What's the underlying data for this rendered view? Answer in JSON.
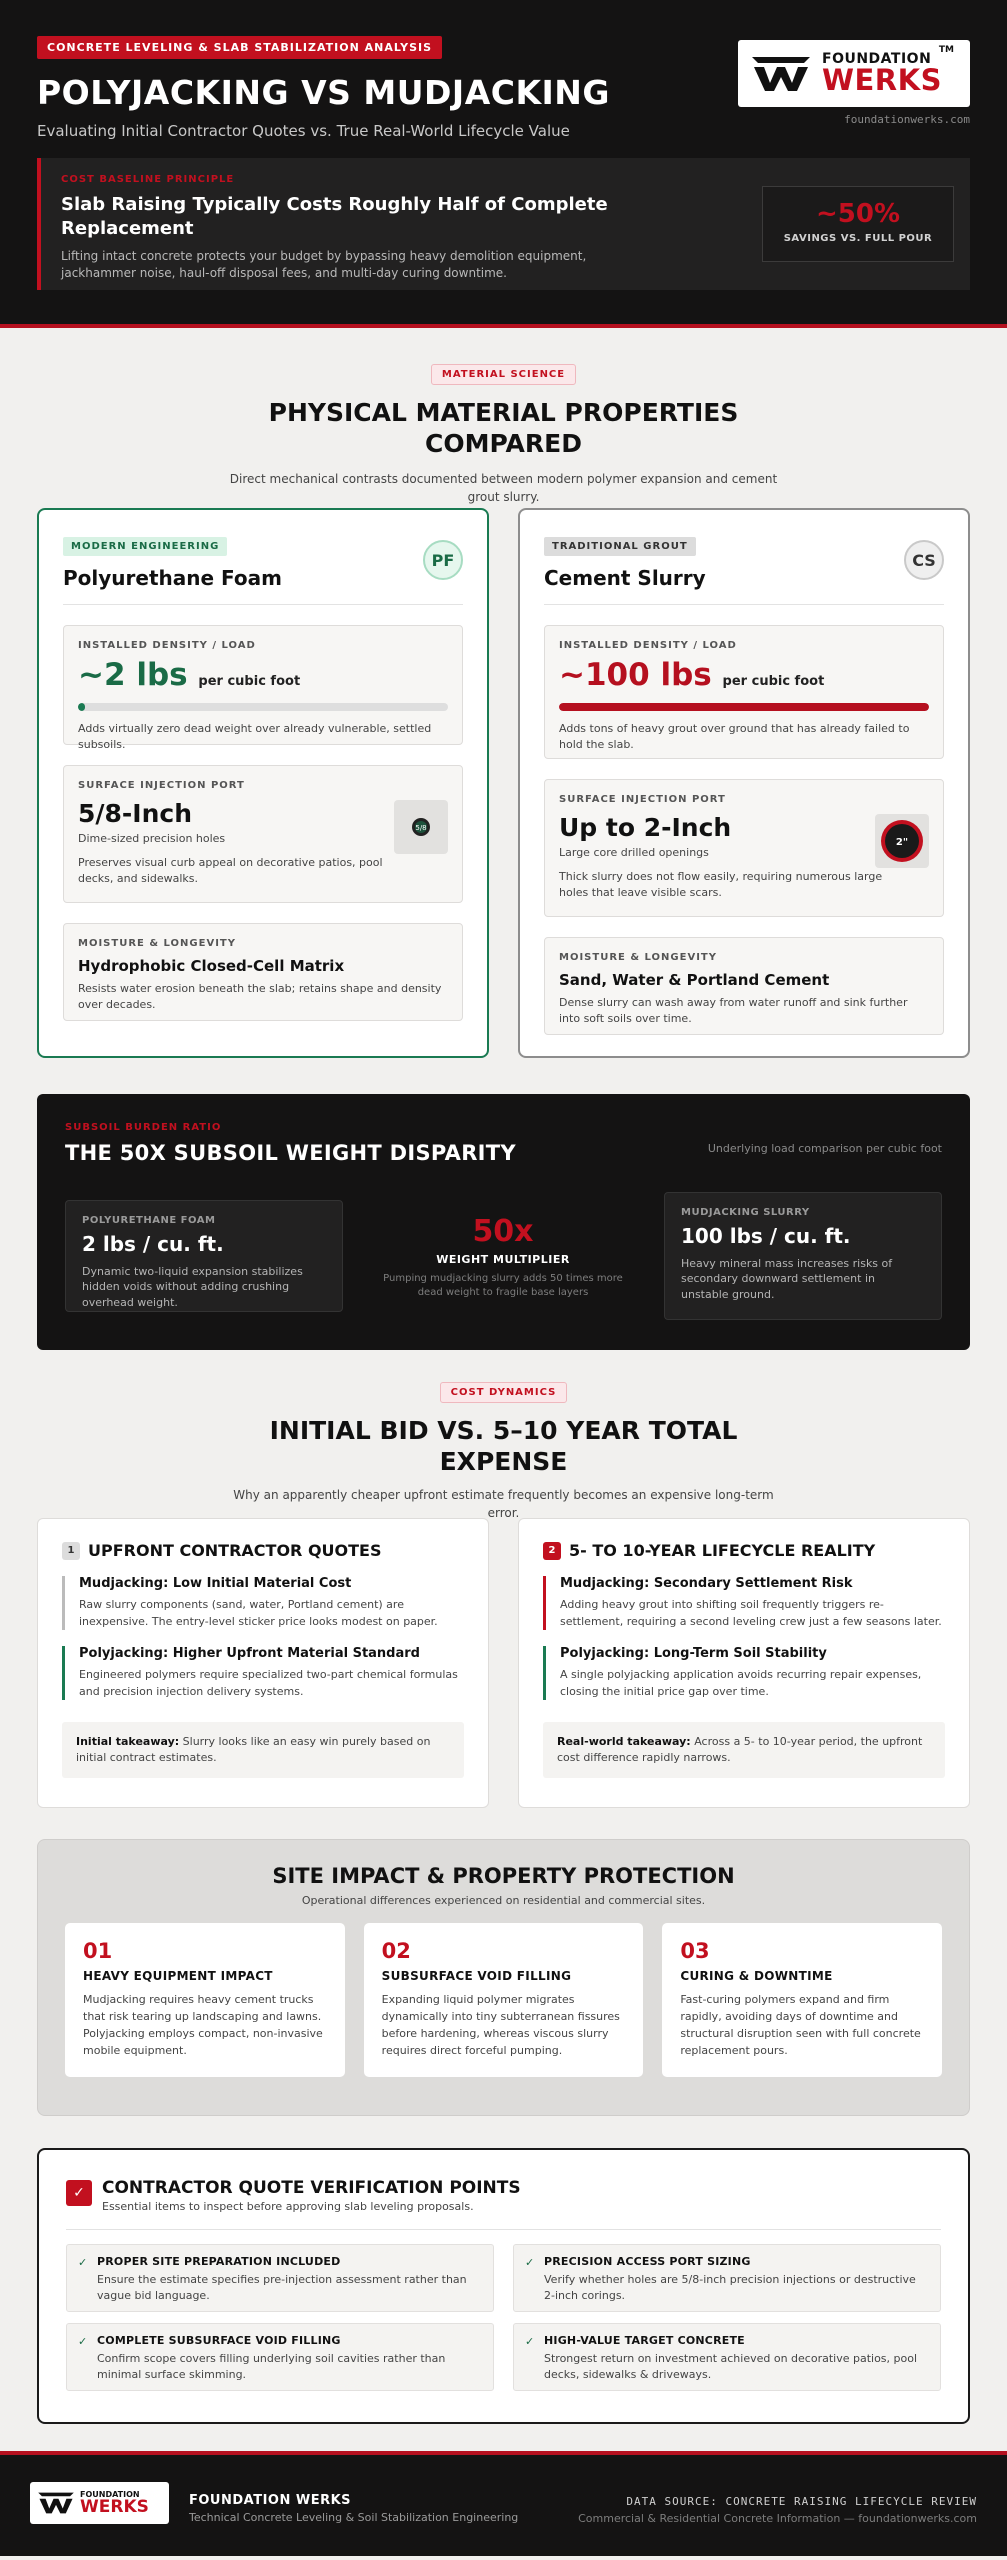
{
  "header": {
    "tag": "CONCRETE LEVELING & SLAB STABILIZATION ANALYSIS",
    "title": "POLYJACKING VS MUDJACKING",
    "subtitle": "Evaluating Initial Contractor Quotes vs. True Real-World Lifecycle Value",
    "logo_top": "FOUNDATION",
    "logo_bottom": "WERKS",
    "logo_tm": "TM",
    "url": "foundationwerks.com",
    "baseline": {
      "label": "COST BASELINE PRINCIPLE",
      "title": "Slab Raising Typically Costs Roughly Half of Complete Replacement",
      "text": "Lifting intact concrete protects your budget by bypassing heavy demolition equipment, jackhammer noise, haul-off disposal fees, and multi-day curing downtime.",
      "savings_value": "~50%",
      "savings_label": "SAVINGS VS. FULL POUR"
    }
  },
  "material": {
    "pill": "MATERIAL SCIENCE",
    "title": "PHYSICAL MATERIAL PROPERTIES COMPARED",
    "subtitle": "Direct mechanical contrasts documented between modern polymer expansion and cement grout slurry.",
    "foam": {
      "tag": "MODERN ENGINEERING",
      "title": "Polyurethane Foam",
      "badge": "PF",
      "density_label": "INSTALLED DENSITY / LOAD",
      "density_value": "~2 lbs",
      "density_unit": "per cubic foot",
      "density_fraction": 0.02,
      "density_note": "Adds virtually zero dead weight over already vulnerable, settled subsoils.",
      "port_label": "SURFACE INJECTION PORT",
      "port_value": "5/8-Inch",
      "port_caption": "Dime-sized precision holes",
      "port_note": "Preserves visual curb appeal on decorative patios, pool decks, and sidewalks.",
      "moisture_label": "MOISTURE & LONGEVITY",
      "moisture_title": "Hydrophobic Closed-Cell Matrix",
      "moisture_note": "Resists water erosion beneath the slab; retains shape and density over decades."
    },
    "slurry": {
      "tag": "TRADITIONAL GROUT",
      "title": "Cement Slurry",
      "badge": "CS",
      "density_label": "INSTALLED DENSITY / LOAD",
      "density_value": "~100 lbs",
      "density_unit": "per cubic foot",
      "density_fraction": 1.0,
      "density_note": "Adds tons of heavy grout over ground that has already failed to hold the slab.",
      "port_label": "SURFACE INJECTION PORT",
      "port_value": "Up to 2-Inch",
      "port_caption": "Large core drilled openings",
      "port_icon_text": "2\"",
      "port_note": "Thick slurry does not flow easily, requiring numerous large holes that leave visible scars.",
      "moisture_label": "MOISTURE & LONGEVITY",
      "moisture_title": "Sand, Water & Portland Cement",
      "moisture_note": "Dense slurry can wash away from water runoff and sink further into soft soils over time."
    }
  },
  "disparity": {
    "label": "SUBSOIL BURDEN RATIO",
    "title": "THE 50X SUBSOIL WEIGHT DISPARITY",
    "right_note": "Underlying load comparison per cubic foot",
    "foam_label": "POLYURETHANE FOAM",
    "foam_value": "2 lbs / cu. ft.",
    "foam_text": "Dynamic two-liquid expansion stabilizes hidden voids without adding crushing overhead weight.",
    "multiplier": "50x",
    "multiplier_label": "WEIGHT MULTIPLIER",
    "multiplier_text": "Pumping mudjacking slurry adds 50 times more dead weight to fragile base layers",
    "slurry_label": "MUDJACKING SLURRY",
    "slurry_value": "100 lbs / cu. ft.",
    "slurry_text": "Heavy mineral mass increases risks of secondary downward settlement in unstable ground."
  },
  "costs": {
    "pill": "COST DYNAMICS",
    "title": "INITIAL BID VS. 5–10 YEAR TOTAL EXPENSE",
    "subtitle": "Why an apparently cheaper upfront estimate frequently becomes an expensive long-term error.",
    "upfront": {
      "num": "1",
      "title": "UPFRONT CONTRACTOR QUOTES",
      "item1_title": "Mudjacking: Low Initial Material Cost",
      "item1_text": "Raw slurry components (sand, water, Portland cement) are inexpensive. The entry-level sticker price looks modest on paper.",
      "item2_title": "Polyjacking: Higher Upfront Material Standard",
      "item2_text": "Engineered polymers require specialized two-part chemical formulas and precision injection delivery systems.",
      "takeaway_label": "Initial takeaway:",
      "takeaway_text": " Slurry looks like an easy win purely based on initial contract estimates."
    },
    "lifecycle": {
      "num": "2",
      "title": "5- TO 10-YEAR LIFECYCLE REALITY",
      "item1_title": "Mudjacking: Secondary Settlement Risk",
      "item1_text": "Adding heavy grout into shifting soil frequently triggers re-settlement, requiring a second leveling crew just a few seasons later.",
      "item2_title": "Polyjacking: Long-Term Soil Stability",
      "item2_text": "A single polyjacking application avoids recurring repair expenses, closing the initial price gap over time.",
      "takeaway_label": "Real-world takeaway:",
      "takeaway_text": " Across a 5- to 10-year period, the upfront cost difference rapidly narrows."
    }
  },
  "site": {
    "title": "SITE IMPACT & PROPERTY PROTECTION",
    "subtitle": "Operational differences experienced on residential and commercial sites.",
    "cards": [
      {
        "num": "01",
        "title": "HEAVY EQUIPMENT IMPACT",
        "text": "Mudjacking requires heavy cement trucks that risk tearing up landscaping and lawns. Polyjacking employs compact, non-invasive mobile equipment."
      },
      {
        "num": "02",
        "title": "SUBSURFACE VOID FILLING",
        "text": "Expanding liquid polymer migrates dynamically into tiny subterranean fissures before hardening, whereas viscous slurry requires direct forceful pumping."
      },
      {
        "num": "03",
        "title": "CURING & DOWNTIME",
        "text": "Fast-curing polymers expand and firm rapidly, avoiding days of downtime and structural disruption seen with full concrete replacement pours."
      }
    ]
  },
  "verify": {
    "check": "✓",
    "title": "CONTRACTOR QUOTE VERIFICATION POINTS",
    "subtitle": "Essential items to inspect before approving slab leveling proposals.",
    "items": [
      {
        "mark": "✓",
        "title": "PROPER SITE PREPARATION INCLUDED",
        "text": "Ensure the estimate specifies pre-injection assessment rather than vague bid language."
      },
      {
        "mark": "✓",
        "title": "PRECISION ACCESS PORT SIZING",
        "text": "Verify whether holes are 5/8-inch precision injections or destructive 2-inch corings."
      },
      {
        "mark": "✓",
        "title": "COMPLETE SUBSURFACE VOID FILLING",
        "text": "Confirm scope covers filling underlying soil cavities rather than minimal surface skimming."
      },
      {
        "mark": "✓",
        "title": "HIGH-VALUE TARGET CONCRETE",
        "text": "Strongest return on investment achieved on decorative patios, pool decks, sidewalks & driveways."
      }
    ]
  },
  "footer": {
    "logo_top": "FOUNDATION",
    "logo_bottom": "WERKS",
    "brand": "FOUNDATION WERKS",
    "desc": "Technical Concrete Leveling & Soil Stabilization Engineering",
    "source": "DATA SOURCE: CONCRETE RAISING LIFECYCLE REVIEW",
    "copy": "Commercial & Residential Concrete Information — foundationwerks.com"
  },
  "colors": {
    "accent_red": "#c2101f",
    "accent_green": "#1a7a52",
    "dark_bg": "#141313"
  }
}
